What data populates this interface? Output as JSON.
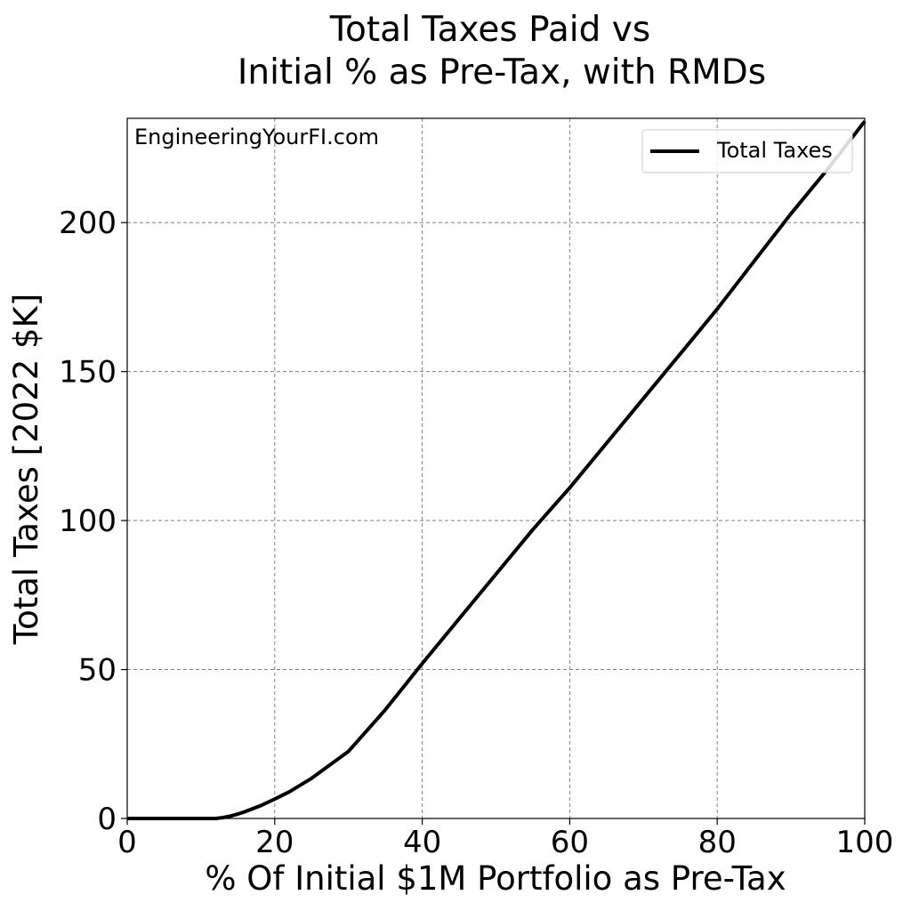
{
  "chart_data": {
    "type": "line",
    "title_line1": "Total Taxes Paid vs",
    "title_line2": "Initial % as Pre-Tax, with RMDs",
    "xlabel": "% Of Initial $1M Portfolio as Pre-Tax",
    "ylabel": "Total Taxes [2022 $K]",
    "xlim": [
      0,
      100
    ],
    "ylim": [
      0,
      235
    ],
    "xticks": [
      0,
      20,
      40,
      60,
      80,
      100
    ],
    "yticks": [
      0,
      50,
      100,
      150,
      200
    ],
    "grid": true,
    "legend_position": "top-right",
    "annotation": "EngineeringYourFI.com",
    "series": [
      {
        "name": "Total Taxes",
        "color": "#000000",
        "x": [
          0,
          5,
          10,
          12,
          13,
          14,
          15,
          16,
          18,
          20,
          22,
          25,
          30,
          35,
          40,
          45,
          50,
          55,
          60,
          65,
          70,
          75,
          80,
          85,
          90,
          95,
          100
        ],
        "y": [
          0,
          0,
          0,
          0,
          0.3,
          0.8,
          1.5,
          2.3,
          4.2,
          6.5,
          9.0,
          13.5,
          22.5,
          36.5,
          52,
          67,
          82,
          97,
          111,
          126,
          141,
          156,
          171,
          187,
          203,
          218,
          234
        ]
      }
    ]
  }
}
